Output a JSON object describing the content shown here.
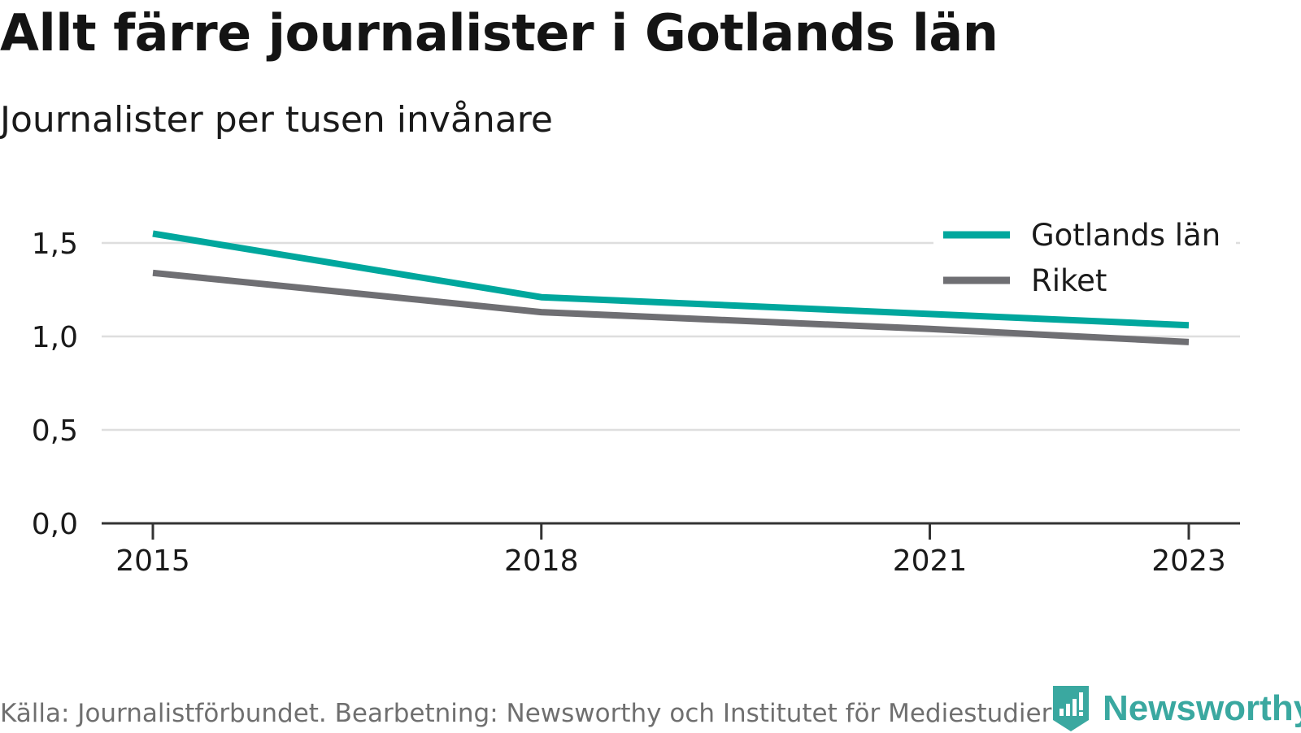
{
  "colors": {
    "gotland": "#00a79d",
    "riket": "#6f6f73",
    "grid": "#dedede",
    "axis": "#333333",
    "brand": "#3aa8a0"
  },
  "chart_data": {
    "type": "line",
    "title": "Allt färre journalister i Gotlands län",
    "subtitle": "Journalister per tusen invånare",
    "x": [
      2015,
      2018,
      2021,
      2023
    ],
    "x_tick_labels": [
      "2015",
      "2018",
      "2021",
      "2023"
    ],
    "y_ticks": [
      0,
      0.5,
      1.0,
      1.5
    ],
    "y_tick_labels": [
      "0,0",
      "0,5",
      "1,0",
      "1,5"
    ],
    "ylim": [
      0,
      1.65
    ],
    "grid": true,
    "legend_position": "top-right",
    "series": [
      {
        "name": "Gotlands län",
        "color": "#00a79d",
        "values": [
          1.55,
          1.21,
          1.12,
          1.06
        ]
      },
      {
        "name": "Riket",
        "color": "#6f6f73",
        "values": [
          1.34,
          1.13,
          1.04,
          0.97
        ]
      }
    ]
  },
  "footer": {
    "source": "Källa: Journalistförbundet. Bearbetning: Newsworthy och Institutet för Mediestudier",
    "brand": "Newsworthy"
  }
}
